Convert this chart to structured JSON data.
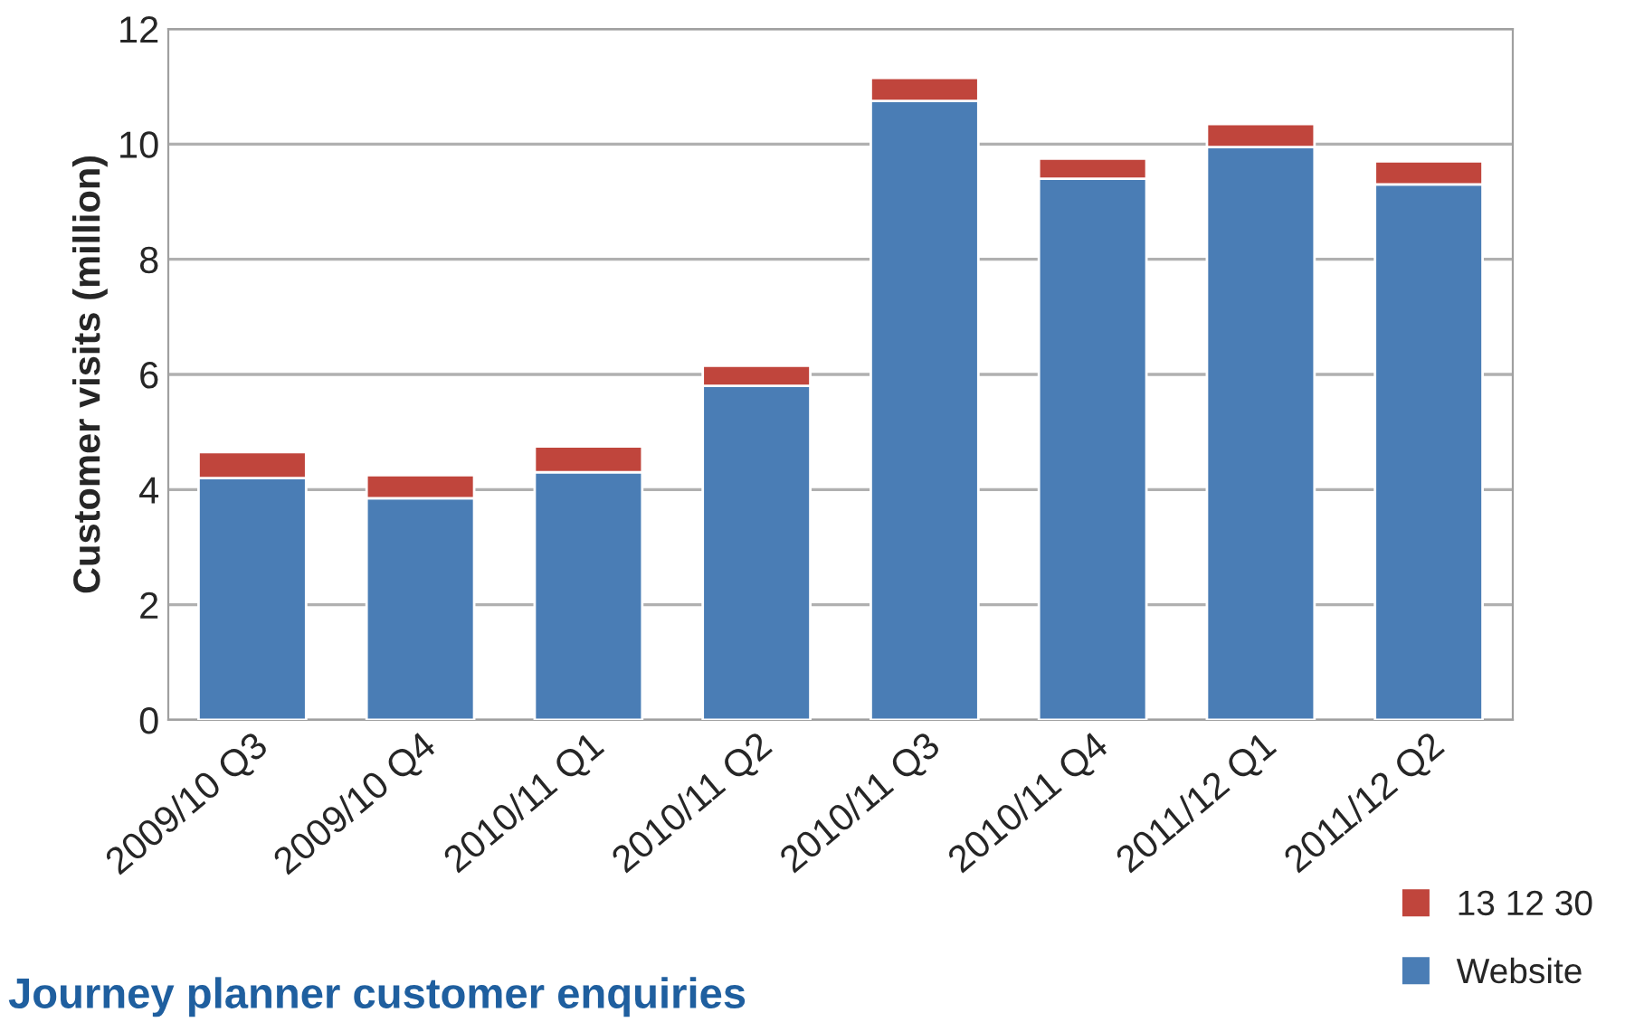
{
  "chart_data": {
    "type": "bar",
    "title": "Journey planner customer enquiries",
    "ylabel": "Customer visits (million)",
    "categories": [
      "2009/10 Q3",
      "2009/10 Q4",
      "2010/11 Q1",
      "2010/11 Q2",
      "2010/11 Q3",
      "2010/11 Q4",
      "2011/12 Q1",
      "2011/12 Q2"
    ],
    "series": [
      {
        "name": "Website",
        "color": "#4a7db5",
        "values": [
          4.2,
          3.85,
          4.3,
          5.8,
          10.75,
          9.4,
          9.95,
          9.3
        ]
      },
      {
        "name": "13 12 30",
        "color": "#c0453c",
        "values": [
          0.45,
          0.4,
          0.45,
          0.35,
          0.4,
          0.35,
          0.4,
          0.4
        ]
      }
    ],
    "stacked": true,
    "ylim": [
      0,
      12
    ],
    "yticks": [
      0,
      2,
      4,
      6,
      8,
      10,
      12
    ],
    "grid": "y",
    "legend": "bottom right"
  }
}
